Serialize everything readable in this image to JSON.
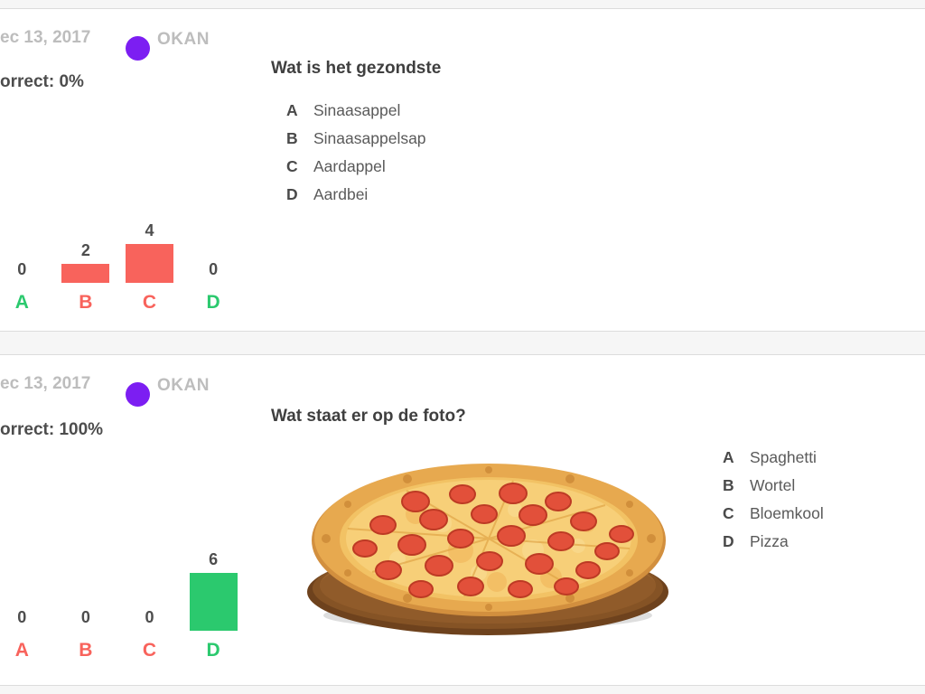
{
  "page": {
    "background": "#f6f6f6",
    "card_background": "#ffffff",
    "border_color": "#dcdcdc"
  },
  "colors": {
    "red": "#f8635c",
    "green": "#2bc96e",
    "purple": "#7c1ef2",
    "date_gray": "#bdbdbd",
    "dark_text": "#3f3f3f",
    "mid_text": "#5a5a5a"
  },
  "cards": [
    {
      "date": "ec 13, 2017",
      "game_name": "OKAN",
      "correct_text": "orrect: 0%",
      "question": "Wat is het gezondste",
      "options": [
        {
          "letter": "A",
          "text": "Sinaasappel"
        },
        {
          "letter": "B",
          "text": "Sinaasappelsap"
        },
        {
          "letter": "C",
          "text": "Aardappel"
        },
        {
          "letter": "D",
          "text": "Aardbei"
        }
      ],
      "chart": {
        "columns": [
          {
            "letter": "A",
            "value": 0,
            "color": "green"
          },
          {
            "letter": "B",
            "value": 2,
            "color": "red"
          },
          {
            "letter": "C",
            "value": 4,
            "color": "red"
          },
          {
            "letter": "D",
            "value": 0,
            "color": "green"
          }
        ]
      }
    },
    {
      "date": "ec 13, 2017",
      "game_name": "OKAN",
      "correct_text": "orrect: 100%",
      "question": "Wat staat er op de foto?",
      "image_alt": "pepperoni-pizza-on-wooden-board",
      "options": [
        {
          "letter": "A",
          "text": "Spaghetti"
        },
        {
          "letter": "B",
          "text": "Wortel"
        },
        {
          "letter": "C",
          "text": "Bloemkool"
        },
        {
          "letter": "D",
          "text": "Pizza"
        }
      ],
      "chart": {
        "columns": [
          {
            "letter": "A",
            "value": 0,
            "color": "red"
          },
          {
            "letter": "B",
            "value": 0,
            "color": "red"
          },
          {
            "letter": "C",
            "value": 0,
            "color": "red"
          },
          {
            "letter": "D",
            "value": 6,
            "color": "green"
          }
        ]
      }
    }
  ],
  "chart_data": [
    {
      "type": "bar",
      "title": "Wat is het gezondste",
      "categories": [
        "A",
        "B",
        "C",
        "D"
      ],
      "values": [
        0,
        2,
        4,
        0
      ],
      "category_colors": [
        "#2bc96e",
        "#f8635c",
        "#f8635c",
        "#2bc96e"
      ],
      "ylim": [
        0,
        4
      ],
      "grid": false,
      "value_labels": true
    },
    {
      "type": "bar",
      "title": "Wat staat er op de foto?",
      "categories": [
        "A",
        "B",
        "C",
        "D"
      ],
      "values": [
        0,
        0,
        0,
        6
      ],
      "category_colors": [
        "#f8635c",
        "#f8635c",
        "#f8635c",
        "#2bc96e"
      ],
      "ylim": [
        0,
        6
      ],
      "grid": false,
      "value_labels": true
    }
  ]
}
